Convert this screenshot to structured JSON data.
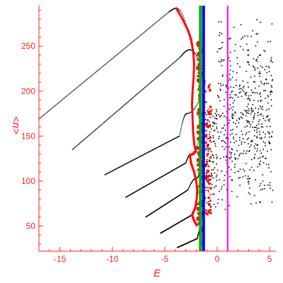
{
  "chart_data": {
    "type": "scatter",
    "title": "",
    "xlabel": "E",
    "ylabel": "<n>",
    "xlim": [
      -17,
      5.6
    ],
    "ylim": [
      22,
      295
    ],
    "x_ticks": [
      -15,
      -10,
      -5,
      0,
      5
    ],
    "y_ticks": [
      50,
      100,
      150,
      200,
      250
    ],
    "x_tick_labels": [
      "-15",
      "-10",
      "-5",
      "0",
      "5"
    ],
    "y_tick_labels": [
      "50",
      "100",
      "150",
      "200",
      "250"
    ],
    "grid": false,
    "legend": "none",
    "colors": {
      "axes": "#ff2020",
      "black_points": "#000000",
      "red_points": "#ff0000",
      "blue_line": "#0000ff",
      "green_line": "#00b000",
      "magenta_line": "#ff00ff"
    },
    "vertical_lines": [
      {
        "x": -1.6,
        "color": "#00b000"
      },
      {
        "x": -1.3,
        "color": "#0000ff"
      },
      {
        "x": 1.0,
        "color": "#ff00ff"
      }
    ],
    "branches": [
      {
        "start": [
          -17.0,
          169
        ],
        "knee": [
          -4.6,
          288
        ],
        "peak": [
          -3.9,
          292
        ],
        "end": [
          -2.6,
          258
        ]
      },
      {
        "start": [
          -13.8,
          135
        ],
        "knee": [
          -3.5,
          238
        ],
        "peak": [
          -2.6,
          246
        ],
        "end": [
          -1.7,
          232
        ]
      },
      {
        "start": [
          -10.7,
          107
        ],
        "knee": [
          -3.6,
          150
        ],
        "peak": [
          -2.9,
          175
        ],
        "end": [
          -1.7,
          190
        ]
      },
      {
        "start": [
          -8.7,
          82
        ],
        "knee": [
          -3.0,
          120
        ],
        "peak": [
          -2.5,
          130
        ],
        "end": [
          -1.6,
          152
        ]
      },
      {
        "start": [
          -6.8,
          60
        ],
        "knee": [
          -2.8,
          90
        ],
        "peak": [
          -2.0,
          103
        ],
        "end": [
          -1.6,
          112
        ]
      },
      {
        "start": [
          -5.4,
          42
        ],
        "knee": [
          -2.3,
          63
        ],
        "peak": [
          -1.9,
          74
        ],
        "end": [
          -1.6,
          80
        ]
      },
      {
        "start": [
          -3.8,
          26
        ],
        "knee": [
          -1.9,
          36
        ],
        "peak": [
          -1.7,
          44
        ],
        "end": [
          -1.5,
          48
        ]
      }
    ],
    "red_curve": [
      [
        -3.9,
        292
      ],
      [
        -3.3,
        280
      ],
      [
        -2.8,
        268
      ],
      [
        -2.5,
        258
      ],
      [
        -2.3,
        245
      ],
      [
        -2.2,
        230
      ],
      [
        -2.25,
        215
      ],
      [
        -2.35,
        200
      ],
      [
        -2.4,
        185
      ],
      [
        -2.35,
        170
      ],
      [
        -2.3,
        155
      ],
      [
        -2.2,
        142
      ],
      [
        -2.05,
        133
      ],
      [
        -2.3,
        130
      ],
      [
        -2.6,
        129
      ],
      [
        -2.5,
        120
      ],
      [
        -2.2,
        110
      ],
      [
        -2.0,
        100
      ],
      [
        -1.9,
        90
      ],
      [
        -1.95,
        80
      ],
      [
        -2.1,
        70
      ],
      [
        -2.4,
        62
      ],
      [
        -2.2,
        56
      ],
      [
        -1.9,
        50
      ]
    ],
    "scatter_region": {
      "x_range": [
        -1.6,
        5.3
      ],
      "y_range": [
        62,
        282
      ],
      "count": 700
    }
  }
}
